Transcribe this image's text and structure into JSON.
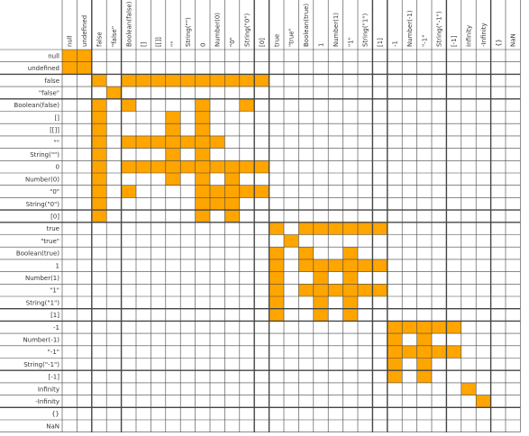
{
  "colors": {
    "fill": "#ffa500",
    "grid": "#444444",
    "background": "#ffffff"
  },
  "chart_data": {
    "type": "heatmap",
    "title": "",
    "row_labels": [
      "null",
      "undefined",
      "false",
      "\"false\"",
      "Boolean(false)",
      "[]",
      "[[]]",
      "\"\"",
      "String(\"\")",
      "0",
      "Number(0)",
      "\"0\"",
      "String(\"0\")",
      "[0]",
      "true",
      "\"true\"",
      "Boolean(true)",
      "1",
      "Number(1)",
      "\"1\"",
      "String(\"1\")",
      "[1]",
      "-1",
      "Number(-1)",
      "\"-1\"",
      "String(\"-1\")",
      "[-1]",
      "Infinity",
      "-Infinity",
      "{}",
      "NaN"
    ],
    "col_labels": [
      "null",
      "undefined",
      "false",
      "\"false\"",
      "Boolean(false)",
      "[]",
      "[[]]",
      "\"\"",
      "String(\"\")",
      "0",
      "Number(0)",
      "\"0\"",
      "String(\"0\")",
      "[0]",
      "true",
      "\"true\"",
      "Boolean(true)",
      "1",
      "Number(1)",
      "\"1\"",
      "String(\"1\")",
      "[1]",
      "-1",
      "Number(-1)",
      "\"-1\"",
      "String(\"-1\")",
      "[-1]",
      "Infinity",
      "-Infinity",
      "{}",
      "NaN"
    ],
    "matrix": [
      [
        1,
        1,
        0,
        0,
        0,
        0,
        0,
        0,
        0,
        0,
        0,
        0,
        0,
        0,
        0,
        0,
        0,
        0,
        0,
        0,
        0,
        0,
        0,
        0,
        0,
        0,
        0,
        0,
        0,
        0,
        0
      ],
      [
        1,
        1,
        0,
        0,
        0,
        0,
        0,
        0,
        0,
        0,
        0,
        0,
        0,
        0,
        0,
        0,
        0,
        0,
        0,
        0,
        0,
        0,
        0,
        0,
        0,
        0,
        0,
        0,
        0,
        0,
        0
      ],
      [
        0,
        0,
        1,
        0,
        1,
        1,
        1,
        1,
        1,
        1,
        1,
        1,
        1,
        1,
        0,
        0,
        0,
        0,
        0,
        0,
        0,
        0,
        0,
        0,
        0,
        0,
        0,
        0,
        0,
        0,
        0
      ],
      [
        0,
        0,
        0,
        1,
        0,
        0,
        0,
        0,
        0,
        0,
        0,
        0,
        0,
        0,
        0,
        0,
        0,
        0,
        0,
        0,
        0,
        0,
        0,
        0,
        0,
        0,
        0,
        0,
        0,
        0,
        0
      ],
      [
        0,
        0,
        1,
        0,
        1,
        0,
        0,
        0,
        0,
        1,
        0,
        0,
        1,
        0,
        0,
        0,
        0,
        0,
        0,
        0,
        0,
        0,
        0,
        0,
        0,
        0,
        0,
        0,
        0,
        0,
        0
      ],
      [
        0,
        0,
        1,
        0,
        0,
        0,
        0,
        1,
        0,
        1,
        0,
        0,
        0,
        0,
        0,
        0,
        0,
        0,
        0,
        0,
        0,
        0,
        0,
        0,
        0,
        0,
        0,
        0,
        0,
        0,
        0
      ],
      [
        0,
        0,
        1,
        0,
        0,
        0,
        0,
        1,
        0,
        1,
        0,
        0,
        0,
        0,
        0,
        0,
        0,
        0,
        0,
        0,
        0,
        0,
        0,
        0,
        0,
        0,
        0,
        0,
        0,
        0,
        0
      ],
      [
        0,
        0,
        1,
        0,
        1,
        1,
        1,
        1,
        1,
        1,
        1,
        0,
        0,
        0,
        0,
        0,
        0,
        0,
        0,
        0,
        0,
        0,
        0,
        0,
        0,
        0,
        0,
        0,
        0,
        0,
        0
      ],
      [
        0,
        0,
        1,
        0,
        0,
        0,
        0,
        1,
        0,
        1,
        0,
        0,
        0,
        0,
        0,
        0,
        0,
        0,
        0,
        0,
        0,
        0,
        0,
        0,
        0,
        0,
        0,
        0,
        0,
        0,
        0
      ],
      [
        0,
        0,
        1,
        0,
        1,
        1,
        1,
        1,
        1,
        1,
        1,
        1,
        1,
        1,
        0,
        0,
        0,
        0,
        0,
        0,
        0,
        0,
        0,
        0,
        0,
        0,
        0,
        0,
        0,
        0,
        0
      ],
      [
        0,
        0,
        1,
        0,
        0,
        0,
        0,
        1,
        0,
        1,
        0,
        1,
        0,
        0,
        0,
        0,
        0,
        0,
        0,
        0,
        0,
        0,
        0,
        0,
        0,
        0,
        0,
        0,
        0,
        0,
        0
      ],
      [
        0,
        0,
        1,
        0,
        1,
        0,
        0,
        0,
        0,
        1,
        1,
        1,
        1,
        1,
        0,
        0,
        0,
        0,
        0,
        0,
        0,
        0,
        0,
        0,
        0,
        0,
        0,
        0,
        0,
        0,
        0
      ],
      [
        0,
        0,
        1,
        0,
        0,
        0,
        0,
        0,
        0,
        1,
        1,
        1,
        0,
        0,
        0,
        0,
        0,
        0,
        0,
        0,
        0,
        0,
        0,
        0,
        0,
        0,
        0,
        0,
        0,
        0,
        0
      ],
      [
        0,
        0,
        1,
        0,
        0,
        0,
        0,
        0,
        0,
        1,
        0,
        1,
        0,
        0,
        0,
        0,
        0,
        0,
        0,
        0,
        0,
        0,
        0,
        0,
        0,
        0,
        0,
        0,
        0,
        0,
        0
      ],
      [
        0,
        0,
        0,
        0,
        0,
        0,
        0,
        0,
        0,
        0,
        0,
        0,
        0,
        0,
        1,
        0,
        1,
        1,
        1,
        1,
        1,
        1,
        0,
        0,
        0,
        0,
        0,
        0,
        0,
        0,
        0
      ],
      [
        0,
        0,
        0,
        0,
        0,
        0,
        0,
        0,
        0,
        0,
        0,
        0,
        0,
        0,
        0,
        1,
        0,
        0,
        0,
        0,
        0,
        0,
        0,
        0,
        0,
        0,
        0,
        0,
        0,
        0,
        0
      ],
      [
        0,
        0,
        0,
        0,
        0,
        0,
        0,
        0,
        0,
        0,
        0,
        0,
        0,
        0,
        1,
        0,
        1,
        0,
        0,
        1,
        0,
        0,
        0,
        0,
        0,
        0,
        0,
        0,
        0,
        0,
        0
      ],
      [
        0,
        0,
        0,
        0,
        0,
        0,
        0,
        0,
        0,
        0,
        0,
        0,
        0,
        0,
        1,
        0,
        1,
        1,
        1,
        1,
        1,
        1,
        0,
        0,
        0,
        0,
        0,
        0,
        0,
        0,
        0
      ],
      [
        0,
        0,
        0,
        0,
        0,
        0,
        0,
        0,
        0,
        0,
        0,
        0,
        0,
        0,
        1,
        0,
        0,
        1,
        0,
        1,
        0,
        0,
        0,
        0,
        0,
        0,
        0,
        0,
        0,
        0,
        0
      ],
      [
        0,
        0,
        0,
        0,
        0,
        0,
        0,
        0,
        0,
        0,
        0,
        0,
        0,
        0,
        1,
        0,
        1,
        1,
        1,
        1,
        1,
        1,
        0,
        0,
        0,
        0,
        0,
        0,
        0,
        0,
        0
      ],
      [
        0,
        0,
        0,
        0,
        0,
        0,
        0,
        0,
        0,
        0,
        0,
        0,
        0,
        0,
        1,
        0,
        0,
        1,
        0,
        1,
        0,
        0,
        0,
        0,
        0,
        0,
        0,
        0,
        0,
        0,
        0
      ],
      [
        0,
        0,
        0,
        0,
        0,
        0,
        0,
        0,
        0,
        0,
        0,
        0,
        0,
        0,
        1,
        0,
        0,
        1,
        0,
        1,
        0,
        0,
        0,
        0,
        0,
        0,
        0,
        0,
        0,
        0,
        0
      ],
      [
        0,
        0,
        0,
        0,
        0,
        0,
        0,
        0,
        0,
        0,
        0,
        0,
        0,
        0,
        0,
        0,
        0,
        0,
        0,
        0,
        0,
        0,
        1,
        1,
        1,
        1,
        1,
        0,
        0,
        0,
        0
      ],
      [
        0,
        0,
        0,
        0,
        0,
        0,
        0,
        0,
        0,
        0,
        0,
        0,
        0,
        0,
        0,
        0,
        0,
        0,
        0,
        0,
        0,
        0,
        1,
        0,
        1,
        0,
        0,
        0,
        0,
        0,
        0
      ],
      [
        0,
        0,
        0,
        0,
        0,
        0,
        0,
        0,
        0,
        0,
        0,
        0,
        0,
        0,
        0,
        0,
        0,
        0,
        0,
        0,
        0,
        0,
        1,
        1,
        1,
        1,
        1,
        0,
        0,
        0,
        0
      ],
      [
        0,
        0,
        0,
        0,
        0,
        0,
        0,
        0,
        0,
        0,
        0,
        0,
        0,
        0,
        0,
        0,
        0,
        0,
        0,
        0,
        0,
        0,
        1,
        0,
        1,
        0,
        0,
        0,
        0,
        0,
        0
      ],
      [
        0,
        0,
        0,
        0,
        0,
        0,
        0,
        0,
        0,
        0,
        0,
        0,
        0,
        0,
        0,
        0,
        0,
        0,
        0,
        0,
        0,
        0,
        1,
        0,
        1,
        0,
        0,
        0,
        0,
        0,
        0
      ],
      [
        0,
        0,
        0,
        0,
        0,
        0,
        0,
        0,
        0,
        0,
        0,
        0,
        0,
        0,
        0,
        0,
        0,
        0,
        0,
        0,
        0,
        0,
        0,
        0,
        0,
        0,
        0,
        1,
        0,
        0,
        0
      ],
      [
        0,
        0,
        0,
        0,
        0,
        0,
        0,
        0,
        0,
        0,
        0,
        0,
        0,
        0,
        0,
        0,
        0,
        0,
        0,
        0,
        0,
        0,
        0,
        0,
        0,
        0,
        0,
        0,
        1,
        0,
        0
      ],
      [
        0,
        0,
        0,
        0,
        0,
        0,
        0,
        0,
        0,
        0,
        0,
        0,
        0,
        0,
        0,
        0,
        0,
        0,
        0,
        0,
        0,
        0,
        0,
        0,
        0,
        0,
        0,
        0,
        0,
        0,
        0
      ],
      [
        0,
        0,
        0,
        0,
        0,
        0,
        0,
        0,
        0,
        0,
        0,
        0,
        0,
        0,
        0,
        0,
        0,
        0,
        0,
        0,
        0,
        0,
        0,
        0,
        0,
        0,
        0,
        0,
        0,
        0,
        0
      ]
    ],
    "grid": true,
    "legend": "none"
  }
}
